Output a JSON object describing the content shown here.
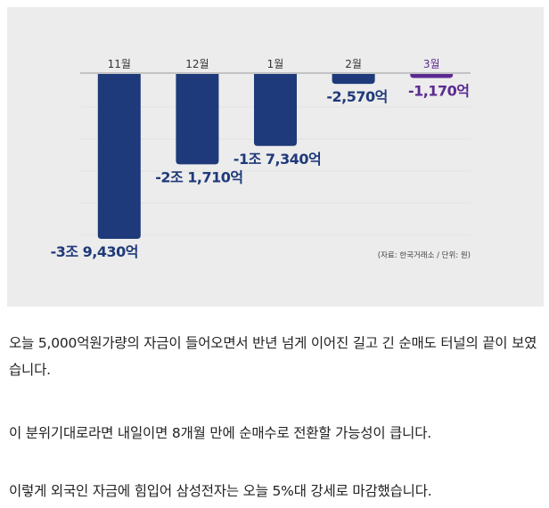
{
  "chart_data": {
    "type": "bar",
    "categories": [
      "11월",
      "12월",
      "1월",
      "2월",
      "3월"
    ],
    "values": [
      -39430,
      -21710,
      -17340,
      -2570,
      -1170
    ],
    "value_labels": [
      "-3조 9,430억",
      "-2조 1,710억",
      "-1조 7,340억",
      "-2,570억",
      "-1,170억"
    ],
    "source_note": "(자료: 한국거래소 / 단위: 원)",
    "ylim": [
      -42000,
      0
    ],
    "grid": true,
    "colors": {
      "bar": "#1f3a7a",
      "highlight_bar": "#5b2a91",
      "axis": "#b5b5b5",
      "label": "#1f3a7a",
      "highlight_label": "#5b2a91"
    },
    "highlight_index": 4
  },
  "article": {
    "p1": "오늘 5,000억원가량의 자금이 들어오면서 반년 넘게 이어진 길고 긴 순매도 터널의 끝이 보였습니다.",
    "p2": "이 분위기대로라면 내일이면 8개월 만에 순매수로 전환할 가능성이 큽니다.",
    "p3": "이렇게 외국인 자금에 힘입어 삼성전자는 오늘 5%대 강세로 마감했습니다."
  }
}
